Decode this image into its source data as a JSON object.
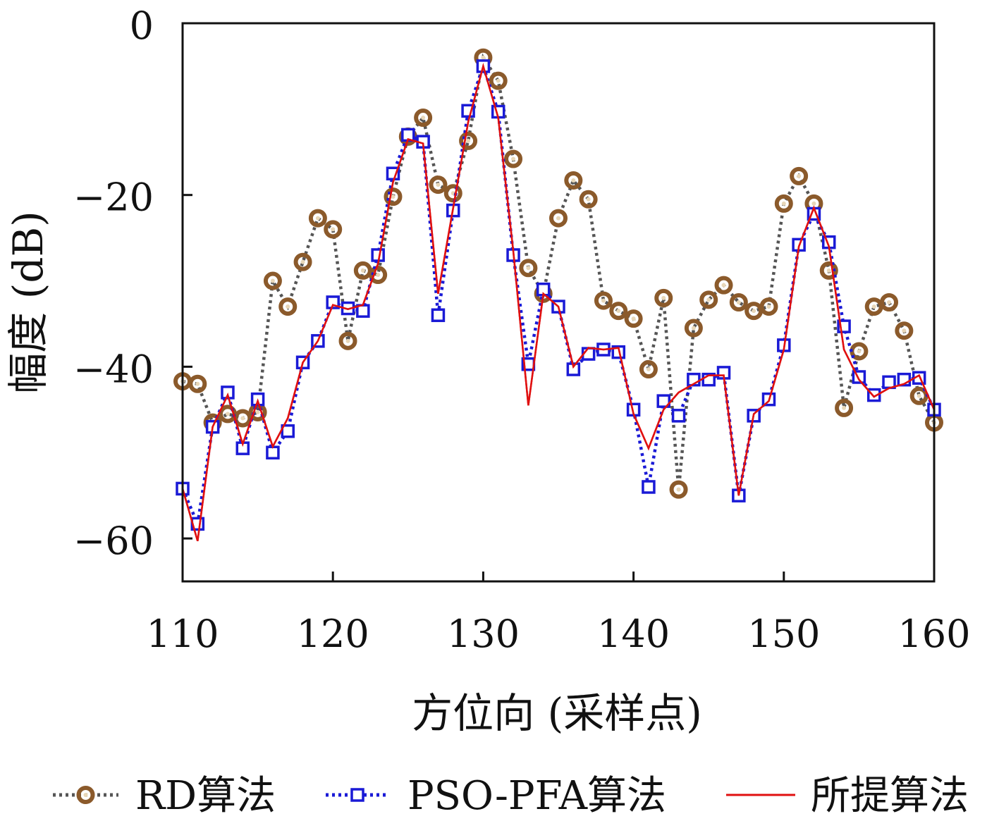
{
  "chart_data": {
    "type": "line",
    "xlabel": "方位向 (采样点)",
    "ylabel": "幅度 (dB)",
    "xlim": [
      110,
      160
    ],
    "ylim": [
      -65,
      0
    ],
    "xticks": [
      110,
      120,
      130,
      140,
      150,
      160
    ],
    "yticks": [
      0,
      -20,
      -40,
      -60
    ],
    "xtick_labels": [
      "110",
      "120",
      "130",
      "140",
      "150",
      "160"
    ],
    "ytick_labels": [
      "0",
      "−20",
      "−40",
      "−60"
    ],
    "grid": false,
    "legend_position": "bottom",
    "x": [
      110,
      111,
      112,
      113,
      114,
      115,
      116,
      117,
      118,
      119,
      120,
      121,
      122,
      123,
      124,
      125,
      126,
      127,
      128,
      129,
      130,
      131,
      132,
      133,
      134,
      135,
      136,
      137,
      138,
      139,
      140,
      141,
      142,
      143,
      144,
      145,
      146,
      147,
      148,
      149,
      150,
      151,
      152,
      153,
      154,
      155,
      156,
      157,
      158,
      159,
      160
    ],
    "series": [
      {
        "name": "RD算法",
        "color": "#8B5A2B",
        "line_color": "#555555",
        "line_style": "dotted",
        "marker": "circle",
        "values": [
          -41.7,
          -42.0,
          -46.5,
          -45.5,
          -46.0,
          -45.3,
          -30.0,
          -33.0,
          -27.8,
          -22.7,
          -24.0,
          -37.0,
          -28.8,
          -29.3,
          -20.2,
          -13.2,
          -11.0,
          -18.8,
          -19.8,
          -13.7,
          -4.0,
          -6.7,
          -15.8,
          -28.5,
          -31.5,
          -22.7,
          -18.3,
          -20.5,
          -32.3,
          -33.5,
          -34.4,
          -40.3,
          -32.0,
          -54.3,
          -35.5,
          -32.2,
          -30.5,
          -32.5,
          -33.5,
          -33.0,
          -21.0,
          -17.8,
          -21.0,
          -28.8,
          -44.8,
          -38.2,
          -33.0,
          -32.5,
          -35.8,
          -43.4,
          -46.5
        ]
      },
      {
        "name": "PSO-PFA算法",
        "color": "#1a1ad6",
        "line_color": "#1a1ad6",
        "line_style": "dotted",
        "marker": "square",
        "values": [
          -54.2,
          -58.3,
          -47.0,
          -43.0,
          -49.5,
          -43.8,
          -50.0,
          -47.5,
          -39.5,
          -37.0,
          -32.5,
          -33.2,
          -33.5,
          -27.0,
          -17.5,
          -13.0,
          -13.8,
          -34.0,
          -21.8,
          -10.2,
          -5.0,
          -10.3,
          -27.0,
          -39.7,
          -31.0,
          -33.0,
          -40.3,
          -38.5,
          -38.0,
          -38.3,
          -45.0,
          -54.0,
          -44.0,
          -45.7,
          -41.5,
          -41.5,
          -40.7,
          -55.0,
          -45.7,
          -43.8,
          -37.5,
          -25.8,
          -22.2,
          -25.5,
          -35.3,
          -41.2,
          -43.3,
          -41.8,
          -41.5,
          -41.3,
          -45.0
        ]
      },
      {
        "name": "所提算法",
        "color": "#e01010",
        "line_color": "#e01010",
        "line_style": "solid",
        "marker": "none",
        "values": [
          -54.2,
          -60.3,
          -47.0,
          -43.3,
          -49.0,
          -44.0,
          -49.3,
          -46.0,
          -39.5,
          -37.0,
          -32.8,
          -33.3,
          -32.8,
          -28.0,
          -18.5,
          -13.5,
          -14.0,
          -31.5,
          -21.5,
          -11.5,
          -5.0,
          -11.0,
          -26.5,
          -44.5,
          -31.5,
          -33.0,
          -40.0,
          -37.8,
          -38.0,
          -37.8,
          -45.5,
          -49.5,
          -45.0,
          -43.0,
          -42.0,
          -41.0,
          -41.0,
          -55.0,
          -45.5,
          -44.0,
          -38.0,
          -26.0,
          -21.5,
          -26.0,
          -38.0,
          -41.5,
          -43.5,
          -42.5,
          -42.0,
          -41.0,
          -45.0
        ]
      }
    ]
  }
}
